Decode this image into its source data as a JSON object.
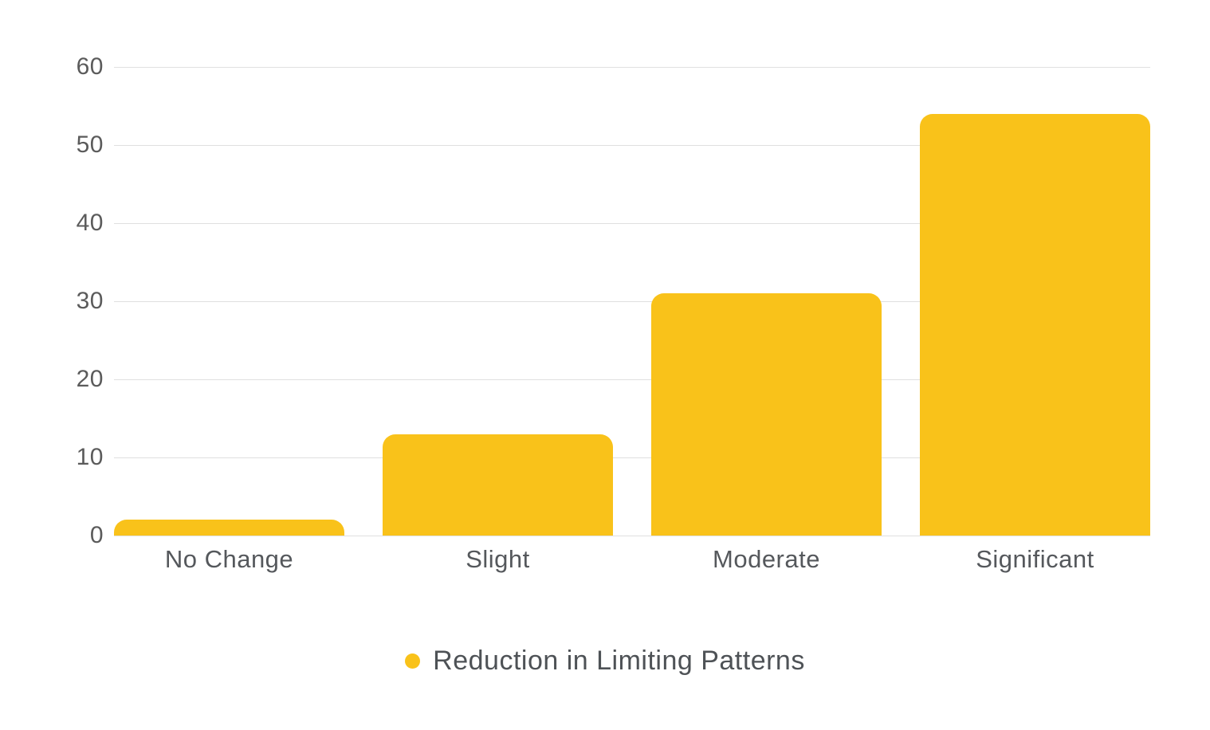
{
  "chart_data": {
    "type": "bar",
    "categories": [
      "No Change",
      "Slight",
      "Moderate",
      "Significant"
    ],
    "series": [
      {
        "name": "Reduction in Limiting Patterns",
        "values": [
          2,
          13,
          31,
          54
        ]
      }
    ],
    "title": "",
    "xlabel": "",
    "ylabel": "",
    "ylim": [
      0,
      60
    ],
    "yticks": [
      0,
      10,
      20,
      30,
      40,
      50,
      60
    ],
    "grid": true,
    "gridlines": "horizontal",
    "legend_position": "bottom",
    "bar_corner_radius_px": 16,
    "colors": {
      "bar": "#f9c21a",
      "grid": "#e0e0e0",
      "tick_text": "#5b5b5b",
      "category_text": "#55585c",
      "legend_text": "#4e5256",
      "background": "#ffffff"
    }
  },
  "legend": {
    "label": "Reduction in Limiting Patterns",
    "marker": "circle-icon"
  }
}
